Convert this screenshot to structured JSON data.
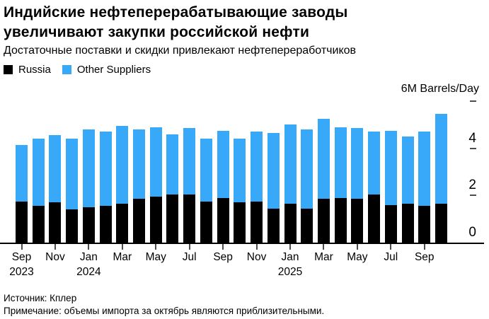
{
  "header": {
    "title_line1": "Индийские нефтеперерабатывающие заводы",
    "title_line2": "увеличивают закупки российской нефти",
    "subtitle": "Достаточные поставки и скидки привлекают нефтепереработчиков"
  },
  "legend": {
    "items": [
      {
        "label": "Russia",
        "color": "#000000"
      },
      {
        "label": "Other Suppliers",
        "color": "#38A8F8"
      }
    ]
  },
  "chart_data": {
    "type": "bar",
    "stacked": true,
    "title": "Индийские нефтеперерабатывающие заводы увеличивают закупки российской нефти",
    "subtitle": "Достаточные поставки и скидки привлекают нефтепереработчиков",
    "unit_label": "6M Barrels/Day",
    "ylabel": "M Barrels/Day",
    "ylim": [
      0,
      6
    ],
    "yticks": [
      0,
      2,
      4,
      6
    ],
    "grid": false,
    "legend_position": "top-left",
    "categories": [
      "Sep 2023",
      "Oct 2023",
      "Nov 2023",
      "Dec 2023",
      "Jan 2024",
      "Feb 2024",
      "Mar 2024",
      "Apr 2024",
      "May 2024",
      "Jun 2024",
      "Jul 2024",
      "Aug 2024",
      "Sep 2024",
      "Oct 2024",
      "Nov 2024",
      "Dec 2024",
      "Jan 2025",
      "Feb 2025",
      "Mar 2025",
      "Apr 2025",
      "May 2025",
      "Jun 2025",
      "Jul 2025",
      "Aug 2025",
      "Sep 2025",
      "Oct 2025"
    ],
    "series": [
      {
        "name": "Russia",
        "color": "#000000",
        "values": [
          1.75,
          1.55,
          1.7,
          1.4,
          1.5,
          1.55,
          1.65,
          1.85,
          1.95,
          2.05,
          2.05,
          1.75,
          1.9,
          1.7,
          1.75,
          1.45,
          1.65,
          1.45,
          1.85,
          1.9,
          1.85,
          2.05,
          1.6,
          1.65,
          1.55,
          1.65
        ]
      },
      {
        "name": "Other Suppliers",
        "color": "#38A8F8",
        "values": [
          2.4,
          2.85,
          2.85,
          3.0,
          3.3,
          3.15,
          3.3,
          2.95,
          2.95,
          2.55,
          2.8,
          2.65,
          2.85,
          2.7,
          2.95,
          3.2,
          3.35,
          3.35,
          3.4,
          3.0,
          3.0,
          2.65,
          3.15,
          2.85,
          3.15,
          3.8
        ]
      }
    ],
    "xticks": [
      {
        "index": 0,
        "month": "Sep",
        "year": "2023"
      },
      {
        "index": 2,
        "month": "Nov",
        "year": ""
      },
      {
        "index": 4,
        "month": "Jan",
        "year": "2024"
      },
      {
        "index": 6,
        "month": "Mar",
        "year": ""
      },
      {
        "index": 8,
        "month": "May",
        "year": ""
      },
      {
        "index": 10,
        "month": "Jul",
        "year": ""
      },
      {
        "index": 12,
        "month": "Sep",
        "year": ""
      },
      {
        "index": 14,
        "month": "Nov",
        "year": ""
      },
      {
        "index": 16,
        "month": "Jan",
        "year": "2025"
      },
      {
        "index": 18,
        "month": "Mar",
        "year": ""
      },
      {
        "index": 20,
        "month": "May",
        "year": ""
      },
      {
        "index": 22,
        "month": "Jul",
        "year": ""
      },
      {
        "index": 24,
        "month": "Sep",
        "year": ""
      }
    ]
  },
  "footer": {
    "source": "Источник: Кплер",
    "note": "Примечание: объемы импорта за октябрь являются приблизительными."
  }
}
